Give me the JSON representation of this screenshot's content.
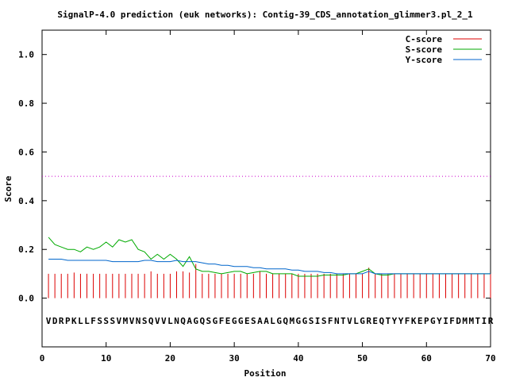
{
  "chart_data": {
    "type": "line",
    "title": "SignalP-4.0 prediction (euk networks): Contig-39_CDS_annotation_glimmer3.pl_2_1",
    "xlabel": "Position",
    "ylabel": "Score",
    "xlim": [
      0,
      70
    ],
    "ylim": [
      -0.2,
      1.1
    ],
    "x_ticks": [
      0,
      10,
      20,
      30,
      40,
      50,
      60,
      70
    ],
    "x_tick_labels": [
      "0",
      "10",
      "20",
      "30",
      "40",
      "50",
      "60",
      "70"
    ],
    "y_ticks": [
      0.0,
      0.2,
      0.4,
      0.6,
      0.8,
      1.0
    ],
    "y_tick_labels": [
      "0.0",
      "0.2",
      "0.4",
      "0.6",
      "0.8",
      "1.0"
    ],
    "grid": false,
    "legend_position": "top-right",
    "threshold": {
      "value": 0.5,
      "color": "#cc00cc"
    },
    "sequence": "VDRPKLLFSSSVMVNSQVVLNQAGQSGFEGGESAALGQMGGSISFNTVLGREQTYYFKEPGYIFDMMTIR",
    "series": [
      {
        "name": "C-score",
        "color": "#dd0000",
        "style": "impulses",
        "x": [
          1,
          2,
          3,
          4,
          5,
          6,
          7,
          8,
          9,
          10,
          11,
          12,
          13,
          14,
          15,
          16,
          17,
          18,
          19,
          20,
          21,
          22,
          23,
          24,
          25,
          26,
          27,
          28,
          29,
          30,
          31,
          32,
          33,
          34,
          35,
          36,
          37,
          38,
          39,
          40,
          41,
          42,
          43,
          44,
          45,
          46,
          47,
          48,
          49,
          50,
          51,
          52,
          53,
          54,
          55,
          56,
          57,
          58,
          59,
          60,
          61,
          62,
          63,
          64,
          65,
          66,
          67,
          68,
          69,
          70
        ],
        "values": [
          0.1,
          0.1,
          0.1,
          0.1,
          0.105,
          0.1,
          0.1,
          0.1,
          0.1,
          0.1,
          0.1,
          0.1,
          0.1,
          0.1,
          0.1,
          0.1,
          0.11,
          0.1,
          0.1,
          0.1,
          0.11,
          0.11,
          0.105,
          0.14,
          0.1,
          0.1,
          0.1,
          0.1,
          0.1,
          0.1,
          0.1,
          0.1,
          0.1,
          0.11,
          0.1,
          0.1,
          0.1,
          0.1,
          0.1,
          0.1,
          0.1,
          0.1,
          0.1,
          0.1,
          0.1,
          0.1,
          0.1,
          0.1,
          0.1,
          0.1,
          0.125,
          0.1,
          0.1,
          0.1,
          0.1,
          0.1,
          0.1,
          0.1,
          0.1,
          0.1,
          0.1,
          0.1,
          0.1,
          0.1,
          0.1,
          0.1,
          0.1,
          0.1,
          0.1,
          0.1
        ]
      },
      {
        "name": "S-score",
        "color": "#00aa00",
        "style": "line",
        "x": [
          1,
          2,
          3,
          4,
          5,
          6,
          7,
          8,
          9,
          10,
          11,
          12,
          13,
          14,
          15,
          16,
          17,
          18,
          19,
          20,
          21,
          22,
          23,
          24,
          25,
          26,
          27,
          28,
          29,
          30,
          31,
          32,
          33,
          34,
          35,
          36,
          37,
          38,
          39,
          40,
          41,
          42,
          43,
          44,
          45,
          46,
          47,
          48,
          49,
          50,
          51,
          52,
          53,
          54,
          55,
          56,
          57,
          58,
          59,
          60,
          61,
          62,
          63,
          64,
          65,
          66,
          67,
          68,
          69,
          70
        ],
        "values": [
          0.25,
          0.22,
          0.21,
          0.2,
          0.2,
          0.19,
          0.21,
          0.2,
          0.21,
          0.23,
          0.21,
          0.24,
          0.23,
          0.24,
          0.2,
          0.19,
          0.16,
          0.18,
          0.16,
          0.18,
          0.16,
          0.13,
          0.17,
          0.12,
          0.11,
          0.11,
          0.105,
          0.1,
          0.105,
          0.11,
          0.11,
          0.1,
          0.105,
          0.11,
          0.11,
          0.1,
          0.1,
          0.1,
          0.1,
          0.09,
          0.09,
          0.09,
          0.09,
          0.095,
          0.095,
          0.095,
          0.095,
          0.1,
          0.1,
          0.11,
          0.12,
          0.1,
          0.095,
          0.095,
          0.1,
          0.1,
          0.1,
          0.1,
          0.1,
          0.1,
          0.1,
          0.1,
          0.1,
          0.1,
          0.1,
          0.1,
          0.1,
          0.1,
          0.1,
          0.1
        ]
      },
      {
        "name": "Y-score",
        "color": "#0066cc",
        "style": "line",
        "x": [
          1,
          2,
          3,
          4,
          5,
          6,
          7,
          8,
          9,
          10,
          11,
          12,
          13,
          14,
          15,
          16,
          17,
          18,
          19,
          20,
          21,
          22,
          23,
          24,
          25,
          26,
          27,
          28,
          29,
          30,
          31,
          32,
          33,
          34,
          35,
          36,
          37,
          38,
          39,
          40,
          41,
          42,
          43,
          44,
          45,
          46,
          47,
          48,
          49,
          50,
          51,
          52,
          53,
          54,
          55,
          56,
          57,
          58,
          59,
          60,
          61,
          62,
          63,
          64,
          65,
          66,
          67,
          68,
          69,
          70
        ],
        "values": [
          0.16,
          0.16,
          0.16,
          0.155,
          0.155,
          0.155,
          0.155,
          0.155,
          0.155,
          0.155,
          0.15,
          0.15,
          0.15,
          0.15,
          0.15,
          0.155,
          0.155,
          0.15,
          0.15,
          0.15,
          0.155,
          0.15,
          0.15,
          0.15,
          0.145,
          0.14,
          0.14,
          0.135,
          0.135,
          0.13,
          0.13,
          0.13,
          0.125,
          0.125,
          0.12,
          0.12,
          0.12,
          0.12,
          0.115,
          0.115,
          0.11,
          0.11,
          0.11,
          0.105,
          0.105,
          0.1,
          0.1,
          0.1,
          0.1,
          0.1,
          0.11,
          0.1,
          0.1,
          0.1,
          0.1,
          0.1,
          0.1,
          0.1,
          0.1,
          0.1,
          0.1,
          0.1,
          0.1,
          0.1,
          0.1,
          0.1,
          0.1,
          0.1,
          0.1,
          0.1
        ]
      }
    ]
  }
}
